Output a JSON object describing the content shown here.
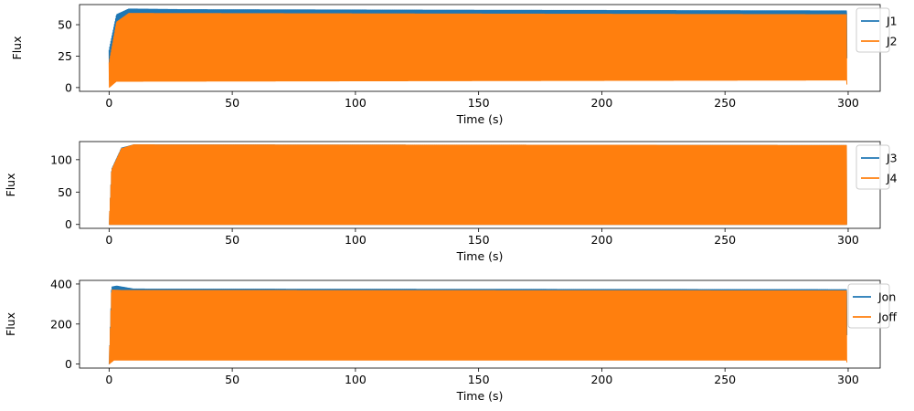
{
  "chart_data": [
    {
      "type": "line",
      "xlabel": "Time (s)",
      "ylabel": "Flux",
      "xlim": [
        -12,
        313
      ],
      "ylim": [
        -3,
        66
      ],
      "xticks": [
        0,
        50,
        100,
        150,
        200,
        250,
        300
      ],
      "yticks": [
        0,
        25,
        50
      ],
      "legend_position": "right",
      "series": [
        {
          "name": "J1",
          "color": "#1f77b4",
          "mode": "oscillating",
          "rise_end": 5,
          "upper": [
            [
              0,
              30
            ],
            [
              3,
              58
            ],
            [
              8,
              62.5
            ],
            [
              30,
              62
            ],
            [
              150,
              61.5
            ],
            [
              299.5,
              61
            ]
          ],
          "lower": [
            [
              0,
              5
            ],
            [
              8,
              58
            ],
            [
              299.5,
              58
            ]
          ]
        },
        {
          "name": "J2",
          "color": "#ff7f0e",
          "mode": "oscillating",
          "rise_end": 5,
          "upper": [
            [
              0,
              20
            ],
            [
              3,
              52
            ],
            [
              8,
              59
            ],
            [
              299.5,
              58
            ]
          ],
          "lower": [
            [
              0,
              0
            ],
            [
              3,
              5
            ],
            [
              299.5,
              6
            ]
          ]
        }
      ]
    },
    {
      "type": "line",
      "xlabel": "Time (s)",
      "ylabel": "Flux",
      "xlim": [
        -12,
        313
      ],
      "ylim": [
        -6,
        128
      ],
      "xticks": [
        0,
        50,
        100,
        150,
        200,
        250,
        300
      ],
      "yticks": [
        0,
        50,
        100
      ],
      "legend_position": "right",
      "series": [
        {
          "name": "J3",
          "color": "#1f77b4",
          "mode": "oscillating",
          "rise_end": 6,
          "upper": [
            [
              0,
              0
            ],
            [
              1,
              85
            ],
            [
              5,
              118
            ],
            [
              10,
              123
            ],
            [
              299.5,
              122
            ]
          ],
          "lower": [
            [
              0,
              0
            ],
            [
              299.5,
              0
            ]
          ]
        },
        {
          "name": "J4",
          "color": "#ff7f0e",
          "mode": "oscillating",
          "rise_end": 6,
          "upper": [
            [
              0,
              0
            ],
            [
              1,
              84
            ],
            [
              5,
              117
            ],
            [
              10,
              123
            ],
            [
              299.5,
              122
            ]
          ],
          "lower": [
            [
              0,
              0
            ],
            [
              299.5,
              0
            ]
          ]
        }
      ]
    },
    {
      "type": "line",
      "xlabel": "Time (s)",
      "ylabel": "Flux",
      "xlim": [
        -12,
        313
      ],
      "ylim": [
        -20,
        418
      ],
      "xticks": [
        0,
        50,
        100,
        150,
        200,
        250,
        300
      ],
      "yticks": [
        0,
        200,
        400
      ],
      "legend_position": "right",
      "series": [
        {
          "name": "Jon",
          "color": "#1f77b4",
          "mode": "oscillating",
          "rise_end": 2,
          "upper": [
            [
              0,
              0
            ],
            [
              1,
              385
            ],
            [
              3,
              390
            ],
            [
              10,
              375
            ],
            [
              299.5,
              372
            ]
          ],
          "lower": [
            [
              0,
              0
            ],
            [
              3,
              360
            ],
            [
              299.5,
              360
            ]
          ]
        },
        {
          "name": "Joff",
          "color": "#ff7f0e",
          "mode": "oscillating",
          "rise_end": 2,
          "upper": [
            [
              0,
              0
            ],
            [
              1,
              370
            ],
            [
              5,
              368
            ],
            [
              299.5,
              366
            ]
          ],
          "lower": [
            [
              0,
              0
            ],
            [
              2,
              20
            ],
            [
              299.5,
              20
            ]
          ]
        }
      ]
    }
  ]
}
